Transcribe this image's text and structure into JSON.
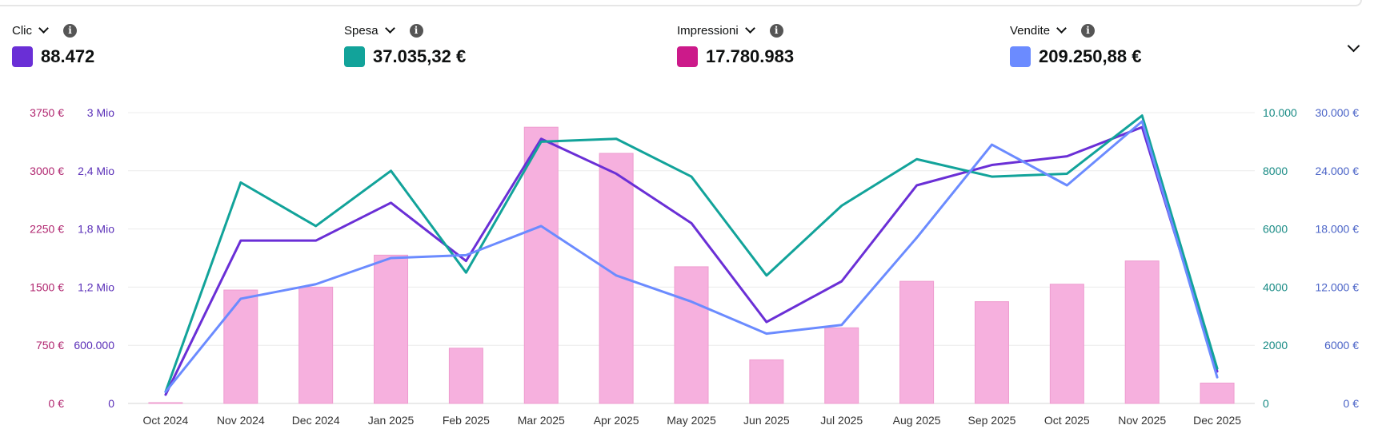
{
  "metrics": [
    {
      "name": "Clic",
      "value": "88.472",
      "color": "#6a2fd6"
    },
    {
      "name": "Spesa",
      "value": "37.035,32 €",
      "color": "#12a39a"
    },
    {
      "name": "Impressioni",
      "value": "17.780.983",
      "color": "#cc1a8a"
    },
    {
      "name": "Vendite",
      "value": "209.250,88 €",
      "color": "#6b8bff"
    }
  ],
  "info_glyph": "i",
  "chart_data": {
    "type": "bar+line",
    "categories": [
      "Oct 2024",
      "Nov 2024",
      "Dec 2024",
      "Jan 2025",
      "Feb 2025",
      "Mar 2025",
      "Apr 2025",
      "May 2025",
      "Jun 2025",
      "Jul 2025",
      "Aug 2025",
      "Sep 2025",
      "Oct 2025",
      "Nov 2025",
      "Dec 2025"
    ],
    "axes": {
      "left_outer": {
        "series": "Impressioni",
        "ticks": [
          "0 €",
          "750 €",
          "1500 €",
          "2250 €",
          "3000 €",
          "3750 €"
        ],
        "color": "#b0256f"
      },
      "left_inner": {
        "series": "Clic",
        "ticks": [
          "0",
          "600.000",
          "1,2 Mio",
          "1,8 Mio",
          "2,4 Mio",
          "3 Mio"
        ],
        "color": "#5a2fb8"
      },
      "right_inner": {
        "series": "Spesa",
        "ticks": [
          "0",
          "2000",
          "4000",
          "6000",
          "8000",
          "10.000"
        ],
        "color": "#178a84"
      },
      "right_outer": {
        "series": "Vendite",
        "ticks": [
          "0 €",
          "6000 €",
          "12.000 €",
          "18.000 €",
          "24.000 €",
          "30.000 €"
        ],
        "color": "#4a63c7"
      }
    },
    "grid": true,
    "bars": {
      "series": "Impressioni",
      "color": "#f6b0de",
      "values": [
        0,
        0.39,
        0.4,
        0.51,
        0.19,
        0.95,
        0.86,
        0.47,
        0.15,
        0.26,
        0.42,
        0.35,
        0.41,
        0.49,
        0.07
      ]
    },
    "lines": [
      {
        "series": "Clic",
        "color": "#6a2fd6",
        "values": [
          0.03,
          0.56,
          0.56,
          0.69,
          0.49,
          0.91,
          0.79,
          0.62,
          0.28,
          0.42,
          0.75,
          0.82,
          0.85,
          0.95,
          0.11
        ]
      },
      {
        "series": "Spesa",
        "color": "#12a39a",
        "values": [
          0.04,
          0.76,
          0.61,
          0.8,
          0.45,
          0.9,
          0.91,
          0.78,
          0.44,
          0.68,
          0.84,
          0.78,
          0.79,
          0.99,
          0.12
        ]
      },
      {
        "series": "Vendite",
        "color": "#6b8bff",
        "values": [
          0.04,
          0.36,
          0.41,
          0.5,
          0.51,
          0.61,
          0.44,
          0.35,
          0.24,
          0.27,
          0.57,
          0.89,
          0.75,
          0.97,
          0.09
        ]
      }
    ]
  }
}
